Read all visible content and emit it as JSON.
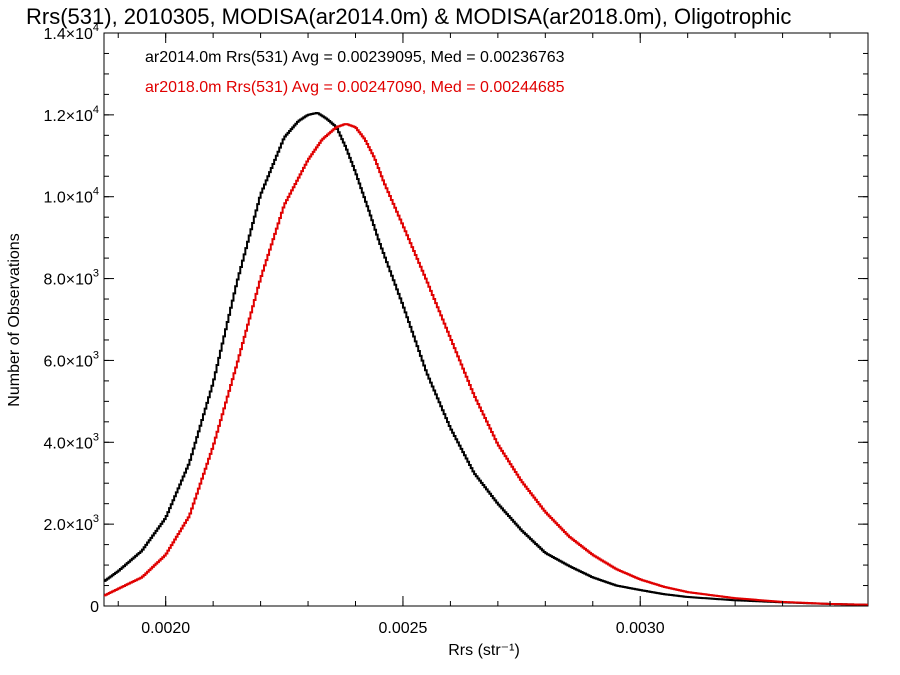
{
  "chart_data": {
    "type": "line",
    "title": "Rrs(531), 2010305, MODISA(ar2014.0m) & MODISA(ar2018.0m), Oligotrophic",
    "xlabel": "Rrs (str⁻¹)",
    "ylabel": "Number of Observations",
    "xlim": [
      0.00187,
      0.00348
    ],
    "ylim": [
      0,
      14000
    ],
    "x_ticks": [
      {
        "value": 0.002,
        "label": "0.0020"
      },
      {
        "value": 0.0025,
        "label": "0.0025"
      },
      {
        "value": 0.003,
        "label": "0.0030"
      }
    ],
    "y_ticks": [
      {
        "value": 0,
        "mant": "0",
        "exp": ""
      },
      {
        "value": 2000,
        "mant": "2.0×10",
        "exp": "3"
      },
      {
        "value": 4000,
        "mant": "4.0×10",
        "exp": "3"
      },
      {
        "value": 6000,
        "mant": "6.0×10",
        "exp": "3"
      },
      {
        "value": 8000,
        "mant": "8.0×10",
        "exp": "3"
      },
      {
        "value": 10000,
        "mant": "1.0×10",
        "exp": "4"
      },
      {
        "value": 12000,
        "mant": "1.2×10",
        "exp": "4"
      },
      {
        "value": 14000,
        "mant": "1.4×10",
        "exp": "4"
      }
    ],
    "grid": false,
    "legend_placement": "top-left",
    "series": [
      {
        "color": "#000000",
        "legend": "ar2014.0m Rrs(531) Avg = 0.00239095, Med = 0.00236763",
        "x": [
          0.00187,
          0.0019,
          0.00195,
          0.002,
          0.00205,
          0.0021,
          0.00215,
          0.0022,
          0.00225,
          0.00228,
          0.0023,
          0.00232,
          0.00234,
          0.00236,
          0.00238,
          0.0024,
          0.00243,
          0.00245,
          0.0025,
          0.00255,
          0.0026,
          0.00265,
          0.0027,
          0.00275,
          0.0028,
          0.00285,
          0.0029,
          0.00295,
          0.003,
          0.00305,
          0.0031,
          0.0032,
          0.0033,
          0.0034,
          0.00348
        ],
        "y": [
          600,
          850,
          1350,
          2150,
          3500,
          5450,
          7900,
          10050,
          11450,
          11850,
          12000,
          12050,
          11900,
          11700,
          11200,
          10600,
          9600,
          8900,
          7350,
          5700,
          4350,
          3250,
          2500,
          1850,
          1300,
          980,
          700,
          500,
          390,
          290,
          220,
          140,
          90,
          50,
          30
        ]
      },
      {
        "color": "#e00000",
        "legend": "ar2018.0m Rrs(531) Avg = 0.00247090, Med = 0.00244685",
        "x": [
          0.00187,
          0.0019,
          0.00195,
          0.002,
          0.00205,
          0.0021,
          0.00215,
          0.0022,
          0.00225,
          0.0023,
          0.00233,
          0.00236,
          0.00238,
          0.0024,
          0.00242,
          0.00244,
          0.00246,
          0.0025,
          0.00255,
          0.0026,
          0.00265,
          0.0027,
          0.00275,
          0.0028,
          0.00285,
          0.0029,
          0.00295,
          0.003,
          0.00305,
          0.0031,
          0.0032,
          0.0033,
          0.0034,
          0.00348
        ],
        "y": [
          250,
          420,
          700,
          1250,
          2200,
          3900,
          5900,
          8000,
          9800,
          10900,
          11400,
          11700,
          11780,
          11700,
          11400,
          10950,
          10350,
          9300,
          7950,
          6550,
          5150,
          3950,
          3050,
          2300,
          1700,
          1250,
          900,
          650,
          470,
          340,
          190,
          100,
          50,
          30
        ]
      }
    ]
  }
}
